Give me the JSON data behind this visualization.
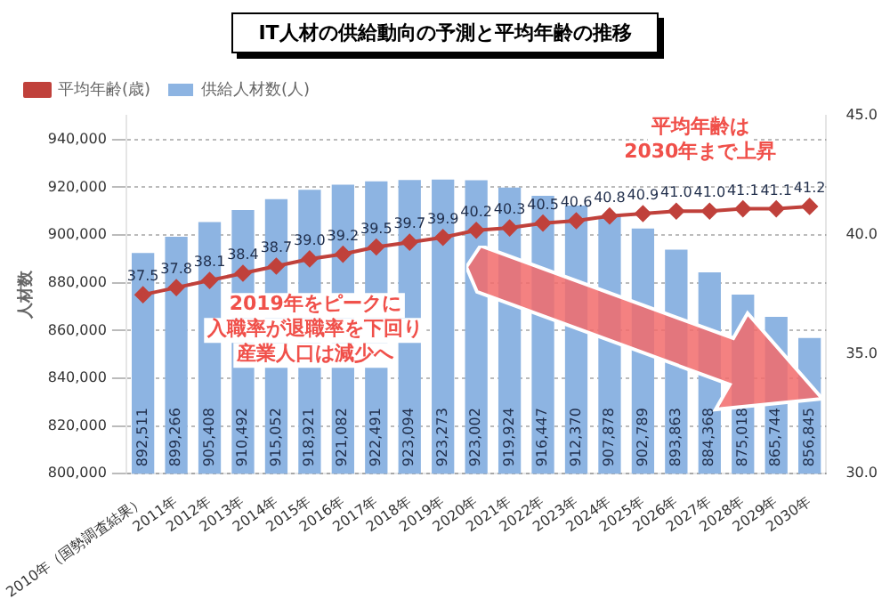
{
  "chart_data": {
    "type": "bar",
    "title": "IT人材の供給動向の予測と平均年齢の推移",
    "ylabel": "人材数",
    "categories": [
      "2010年（国勢調査結果）",
      "2011年",
      "2012年",
      "2013年",
      "2014年",
      "2015年",
      "2016年",
      "2017年",
      "2018年",
      "2019年",
      "2020年",
      "2021年",
      "2022年",
      "2023年",
      "2024年",
      "2025年",
      "2026年",
      "2027年",
      "2028年",
      "2029年",
      "2030年"
    ],
    "series": [
      {
        "name": "供給人材数(人)",
        "type": "bar",
        "color": "#8db4e2",
        "values": [
          892511,
          899266,
          905408,
          910492,
          915052,
          918921,
          921082,
          922491,
          923094,
          923273,
          923002,
          919924,
          916447,
          912370,
          907878,
          902789,
          893863,
          884368,
          875018,
          865744,
          856845
        ],
        "value_labels": [
          "892,511",
          "899,266",
          "905,408",
          "910,492",
          "915,052",
          "918,921",
          "921,082",
          "922,491",
          "923,094",
          "923,273",
          "923,002",
          "919,924",
          "916,447",
          "912,370",
          "907,878",
          "902,789",
          "893,863",
          "884,368",
          "875,018",
          "865,744",
          "856,845"
        ]
      },
      {
        "name": "平均年齢(歳)",
        "type": "line",
        "axis": "y2",
        "color": "#c0413b",
        "values": [
          37.5,
          37.8,
          38.1,
          38.4,
          38.7,
          39.0,
          39.2,
          39.5,
          39.7,
          39.9,
          40.2,
          40.3,
          40.5,
          40.6,
          40.8,
          40.9,
          41.0,
          41.0,
          41.1,
          41.1,
          41.2
        ],
        "value_labels": [
          "37.5",
          "37.8",
          "38.1",
          "38.4",
          "38.7",
          "39.0",
          "39.2",
          "39.5",
          "39.7",
          "39.9",
          "40.2",
          "40.3",
          "40.5",
          "40.6",
          "40.8",
          "40.9",
          "41.0",
          "41.0",
          "41.1",
          "41.1",
          "41.2"
        ]
      }
    ],
    "ylim": [
      800000,
      950000
    ],
    "yticks": [
      {
        "value": 800000,
        "label": "800,000"
      },
      {
        "value": 820000,
        "label": "820,000"
      },
      {
        "value": 840000,
        "label": "840,000"
      },
      {
        "value": 860000,
        "label": "860,000"
      },
      {
        "value": 880000,
        "label": "880,000"
      },
      {
        "value": 900000,
        "label": "900,000"
      },
      {
        "value": 920000,
        "label": "920,000"
      },
      {
        "value": 940000,
        "label": "940,000"
      }
    ],
    "y2lim": [
      30,
      45
    ],
    "y2ticks": [
      {
        "value": 30,
        "label": "30.0"
      },
      {
        "value": 35,
        "label": "35.0"
      },
      {
        "value": 40,
        "label": "40.0"
      },
      {
        "value": 45,
        "label": "45.0"
      }
    ],
    "grid": "y",
    "legend": "top left",
    "marker": "diamond",
    "line_style": "solid",
    "annotations": [
      "平均年齢は",
      "2030年まで上昇",
      "2019年をピークに",
      "入職率が退職率を下回り",
      "産業人口は減少へ"
    ]
  }
}
